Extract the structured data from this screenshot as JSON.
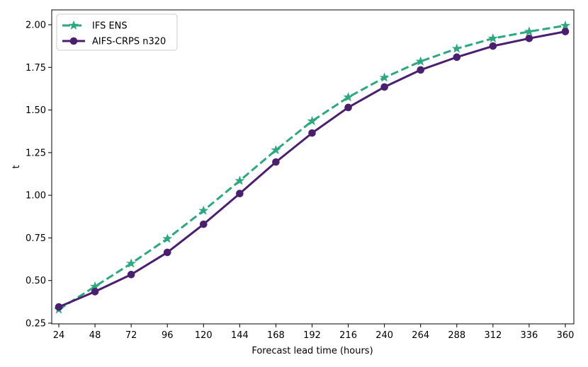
{
  "chart_data": {
    "type": "line",
    "xlabel": "Forecast lead time (hours)",
    "ylabel": "t",
    "x": [
      24,
      48,
      72,
      96,
      120,
      144,
      168,
      192,
      216,
      240,
      264,
      288,
      312,
      336,
      360
    ],
    "xticks": [
      "24",
      "48",
      "72",
      "96",
      "120",
      "144",
      "168",
      "192",
      "216",
      "240",
      "264",
      "288",
      "312",
      "336",
      "360"
    ],
    "xlim": [
      24,
      360
    ],
    "ylim": [
      0.25,
      2.05
    ],
    "yticks": [
      "0.25",
      "0.50",
      "0.75",
      "1.00",
      "1.25",
      "1.50",
      "1.75",
      "2.00"
    ],
    "grid": false,
    "legend_position": "top-left",
    "series": [
      {
        "name": "IFS ENS",
        "color": "#2ca87f",
        "line_style": "dashed",
        "marker": "star",
        "values": [
          0.33,
          0.465,
          0.6,
          0.745,
          0.91,
          1.085,
          1.265,
          1.435,
          1.575,
          1.69,
          1.785,
          1.86,
          1.92,
          1.96,
          1.995
        ]
      },
      {
        "name": "AIFS-CRPS n320",
        "color": "#4b1f6f",
        "line_style": "solid",
        "marker": "circle",
        "values": [
          0.345,
          0.435,
          0.535,
          0.665,
          0.83,
          1.01,
          1.195,
          1.365,
          1.515,
          1.635,
          1.735,
          1.81,
          1.875,
          1.92,
          1.96
        ]
      }
    ]
  }
}
